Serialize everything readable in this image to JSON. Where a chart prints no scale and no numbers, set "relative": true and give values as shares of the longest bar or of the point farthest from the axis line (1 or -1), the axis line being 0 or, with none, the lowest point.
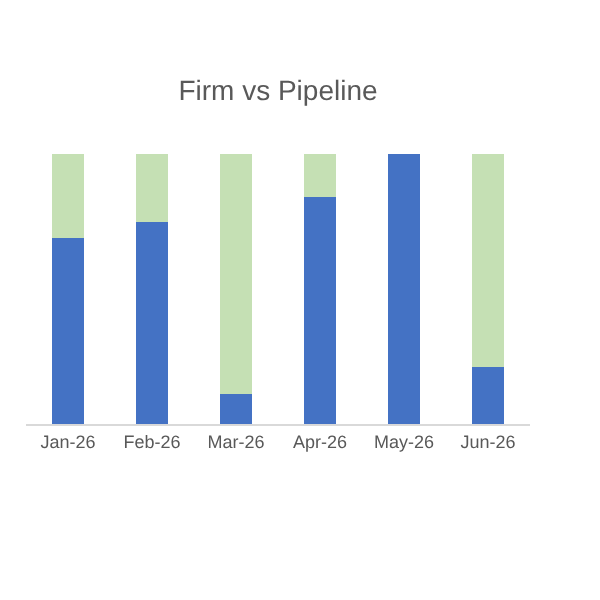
{
  "chart_data": {
    "type": "bar",
    "title": "Firm vs Pipeline",
    "relative": true,
    "stacked": true,
    "categories": [
      "Jan-26",
      "Feb-26",
      "Mar-26",
      "Apr-26",
      "May-26",
      "Jun-26"
    ],
    "series": [
      {
        "color": "#4472c4",
        "values": [
          0.69,
          0.75,
          0.11,
          0.84,
          1.0,
          0.21
        ]
      },
      {
        "color": "#c5e0b4",
        "values": [
          0.31,
          0.25,
          0.89,
          0.16,
          null,
          0.79
        ]
      }
    ]
  }
}
